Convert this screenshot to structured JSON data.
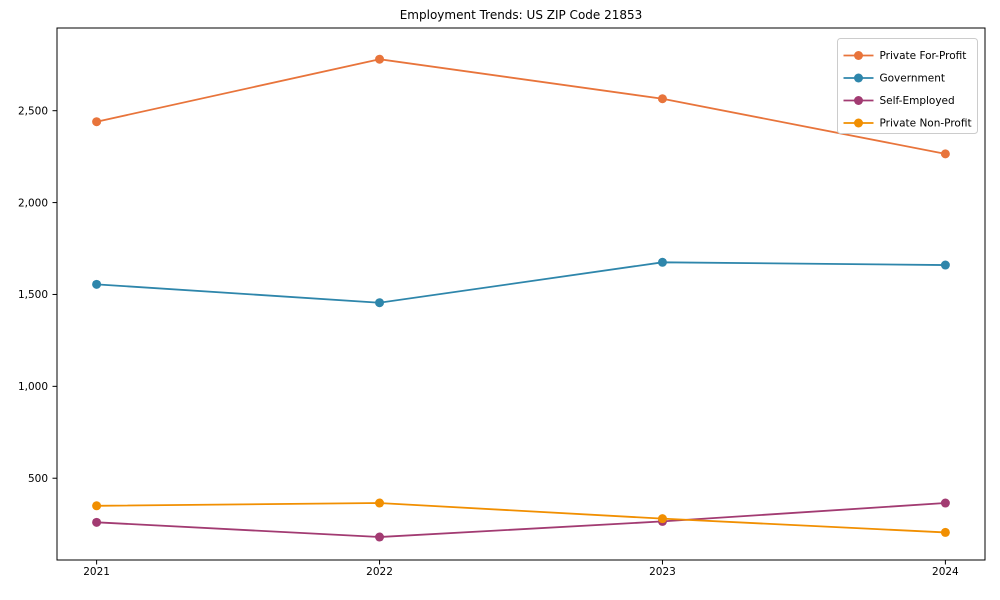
{
  "page": {
    "background": "#ffffff"
  },
  "chart_data": {
    "type": "line",
    "title": "Employment Trends: US ZIP Code 21853",
    "xlabel": "",
    "ylabel": "",
    "x": [
      2021,
      2022,
      2023,
      2024
    ],
    "x_tick_labels": [
      "2021",
      "2022",
      "2023",
      "2024"
    ],
    "yticks": [
      500,
      1000,
      1500,
      2000,
      2500
    ],
    "ytick_labels": [
      "500",
      "1,000",
      "1,500",
      "2,000",
      "2,500"
    ],
    "xlim": [
      2020.86,
      2024.14
    ],
    "ylim": [
      55,
      2950
    ],
    "grid": false,
    "legend_position": "upper right",
    "marker": "circle",
    "series": [
      {
        "name": "Private For-Profit",
        "color": "#E8743B",
        "values": [
          2440,
          2780,
          2565,
          2265
        ]
      },
      {
        "name": "Government",
        "color": "#2E86AB",
        "values": [
          1555,
          1455,
          1675,
          1660
        ]
      },
      {
        "name": "Self-Employed",
        "color": "#A23B72",
        "values": [
          260,
          180,
          265,
          365
        ]
      },
      {
        "name": "Private Non-Profit",
        "color": "#F18F01",
        "values": [
          350,
          365,
          280,
          205
        ]
      }
    ],
    "axis_color": "#000000",
    "legend_border_color": "#cccccc",
    "legend_background": "#ffffff"
  }
}
